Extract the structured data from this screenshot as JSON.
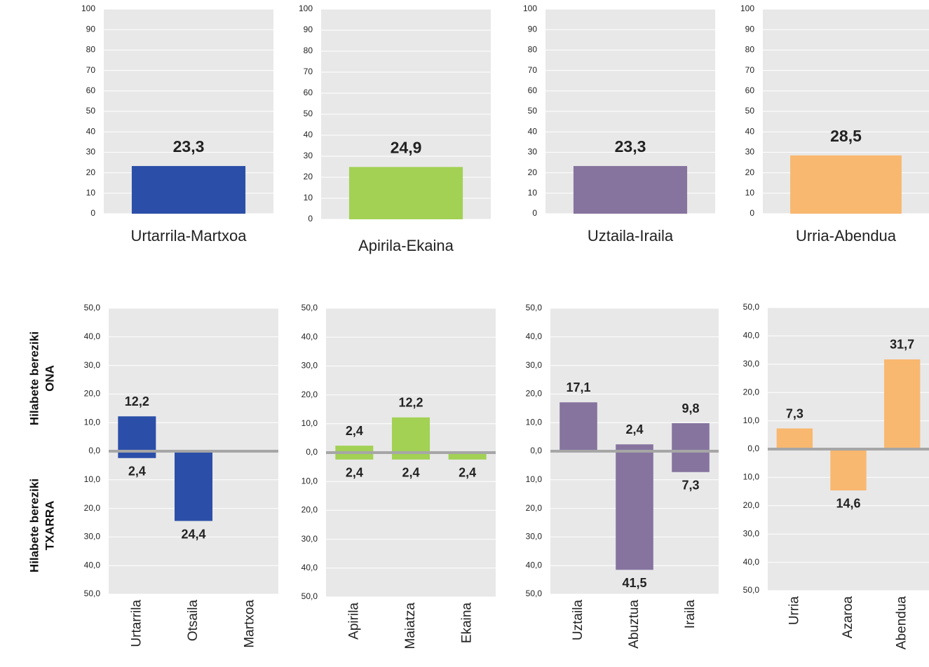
{
  "side_labels": [
    [
      "Hilabete bereziki",
      "ONA"
    ],
    [
      "Hilabete bereziki",
      "TXARRA"
    ]
  ],
  "chart_data": [
    {
      "type": "bar",
      "categories": [
        "Urtarrila-Martxoa"
      ],
      "values": [
        23.3
      ],
      "value_labels": [
        "23,3"
      ],
      "color": "#2b4fa8",
      "label_color": "#2b4fa8",
      "ylim": [
        0,
        100
      ],
      "yticks": [
        0,
        10,
        20,
        30,
        40,
        50,
        60,
        70,
        80,
        90,
        100
      ],
      "grid": true
    },
    {
      "type": "bar",
      "categories": [
        "Apirila-Ekaina"
      ],
      "values": [
        24.9
      ],
      "value_labels": [
        "24,9"
      ],
      "color": "#a2d154",
      "label_color": "#55a83a",
      "ylim": [
        0,
        100
      ],
      "yticks": [
        0,
        10,
        20,
        30,
        40,
        50,
        60,
        70,
        80,
        90,
        100
      ],
      "grid": true
    },
    {
      "type": "bar",
      "categories": [
        "Uztaila-Iraila"
      ],
      "values": [
        23.3
      ],
      "value_labels": [
        "23,3"
      ],
      "color": "#86749f",
      "label_color": "#86749f",
      "ylim": [
        0,
        100
      ],
      "yticks": [
        0,
        10,
        20,
        30,
        40,
        50,
        60,
        70,
        80,
        90,
        100
      ],
      "grid": true
    },
    {
      "type": "bar",
      "categories": [
        "Urria-Abendua"
      ],
      "values": [
        28.5
      ],
      "value_labels": [
        "28,5"
      ],
      "color": "#f8b870",
      "label_color": "#f08a1c",
      "ylim": [
        0,
        100
      ],
      "yticks": [
        0,
        10,
        20,
        30,
        40,
        50,
        60,
        70,
        80,
        90,
        100
      ],
      "grid": true
    },
    {
      "type": "bar",
      "categories": [
        "Urtarrila",
        "Otsaila",
        "Martxoa"
      ],
      "label_color": "#2b4fa8",
      "ylim": [
        -50,
        50
      ],
      "grid": true,
      "yticks": [
        {
          "value": 50,
          "label": "50,0"
        },
        {
          "value": 40,
          "label": "40,0"
        },
        {
          "value": 30,
          "label": "30,0"
        },
        {
          "value": 20,
          "label": "20,0"
        },
        {
          "value": 10,
          "label": "10,0"
        },
        {
          "value": 0,
          "label": "0,0"
        },
        {
          "value": -10,
          "label": "10,0"
        },
        {
          "value": -20,
          "label": "20,0"
        },
        {
          "value": -30,
          "label": "30,0"
        },
        {
          "value": -40,
          "label": "40,0"
        },
        {
          "value": -50,
          "label": "50,0"
        }
      ],
      "series": [
        {
          "color": "#2b4fa8",
          "values": [
            12.2,
            null,
            null
          ],
          "value_labels": [
            "12,2",
            null,
            null
          ]
        },
        {
          "color": "#2b4fa8",
          "values": [
            -2.4,
            -24.4,
            null
          ],
          "value_labels": [
            "2,4",
            "24,4",
            null
          ]
        }
      ]
    },
    {
      "type": "bar",
      "categories": [
        "Apirila",
        "Maiatza",
        "Ekaina"
      ],
      "label_color": "#55a83a",
      "ylim": [
        -50,
        50
      ],
      "grid": true,
      "yticks": [
        {
          "value": 50,
          "label": "50,0"
        },
        {
          "value": 40,
          "label": "40,0"
        },
        {
          "value": 30,
          "label": "30,0"
        },
        {
          "value": 20,
          "label": "20,0"
        },
        {
          "value": 10,
          "label": "10,0"
        },
        {
          "value": 0,
          "label": "0,0"
        },
        {
          "value": -10,
          "label": "10,0"
        },
        {
          "value": -20,
          "label": "20,0"
        },
        {
          "value": -30,
          "label": "30,0"
        },
        {
          "value": -40,
          "label": "40,0"
        },
        {
          "value": -50,
          "label": "50,0"
        }
      ],
      "series": [
        {
          "color": "#a2d154",
          "values": [
            2.4,
            12.2,
            null
          ],
          "value_labels": [
            "2,4",
            "12,2",
            null
          ]
        },
        {
          "color": "#a2d154",
          "values": [
            -2.4,
            -2.4,
            -2.4
          ],
          "value_labels": [
            "2,4",
            "2,4",
            "2,4"
          ]
        }
      ]
    },
    {
      "type": "bar",
      "categories": [
        "Uztaila",
        "Abuztua",
        "Iraila"
      ],
      "label_color": "#86749f",
      "ylim": [
        -50,
        50
      ],
      "grid": true,
      "yticks": [
        {
          "value": 50,
          "label": "50,0"
        },
        {
          "value": 40,
          "label": "40,0"
        },
        {
          "value": 30,
          "label": "30,0"
        },
        {
          "value": 20,
          "label": "20,0"
        },
        {
          "value": 10,
          "label": "10,0"
        },
        {
          "value": 0,
          "label": "0,0"
        },
        {
          "value": -10,
          "label": "10,0"
        },
        {
          "value": -20,
          "label": "20,0"
        },
        {
          "value": -30,
          "label": "30,0"
        },
        {
          "value": -40,
          "label": "40,0"
        },
        {
          "value": -50,
          "label": "50,0"
        }
      ],
      "series": [
        {
          "color": "#86749f",
          "values": [
            17.1,
            2.4,
            9.8
          ],
          "value_labels": [
            "17,1",
            "2,4",
            "9,8"
          ]
        },
        {
          "color": "#86749f",
          "values": [
            null,
            -41.5,
            -7.3
          ],
          "value_labels": [
            null,
            "41,5",
            "7,3"
          ]
        }
      ]
    },
    {
      "type": "bar",
      "categories": [
        "Urria",
        "Azaroa",
        "Abendua"
      ],
      "label_color": "#f08a1c",
      "ylim": [
        -50,
        50
      ],
      "grid": true,
      "yticks": [
        {
          "value": 50,
          "label": "50,0"
        },
        {
          "value": 40,
          "label": "40,0"
        },
        {
          "value": 30,
          "label": "30,0"
        },
        {
          "value": 20,
          "label": "20,0"
        },
        {
          "value": 10,
          "label": "10,0"
        },
        {
          "value": 0,
          "label": "0,0"
        },
        {
          "value": -10,
          "label": "10,0"
        },
        {
          "value": -20,
          "label": "20,0"
        },
        {
          "value": -30,
          "label": "30,0"
        },
        {
          "value": -40,
          "label": "40,0"
        },
        {
          "value": -50,
          "label": "50,0"
        }
      ],
      "series": [
        {
          "color": "#f8b870",
          "values": [
            7.3,
            null,
            31.7
          ],
          "value_labels": [
            "7,3",
            null,
            "31,7"
          ]
        },
        {
          "color": "#f8b870",
          "values": [
            null,
            -14.6,
            null
          ],
          "value_labels": [
            null,
            "14,6",
            null
          ]
        }
      ]
    }
  ]
}
